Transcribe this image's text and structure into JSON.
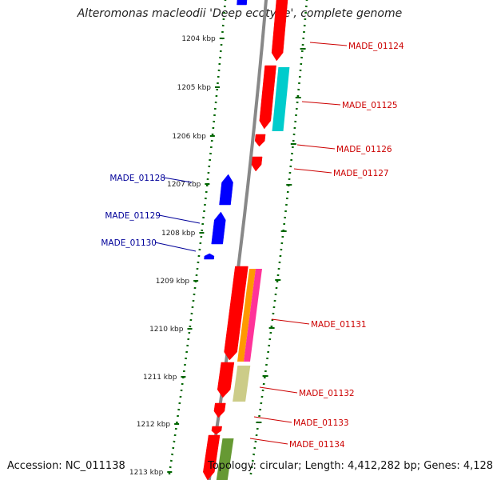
{
  "title": "Alteromonas macleodii 'Deep ecotype', complete genome",
  "accession": "Accession: NC_011138",
  "topology": "Topology: circular; Length: 4,412,282 bp; Genes: 4,128",
  "colors": {
    "forward": "#ff0000",
    "reverse": "#0000ff",
    "label_forward": "#cc0000",
    "label_reverse": "#000099",
    "ticks": "#006600",
    "backbone": "#888888"
  },
  "kbp_ticks": [
    "1204 kbp",
    "1205 kbp",
    "1206 kbp",
    "1207 kbp",
    "1208 kbp",
    "1209 kbp",
    "1210 kbp",
    "1211 kbp",
    "1212 kbp",
    "1213 kbp"
  ],
  "genes_forward": [
    "MADE_01124",
    "MADE_01125",
    "MADE_01126",
    "MADE_01127",
    "MADE_01131",
    "MADE_01132",
    "MADE_01133",
    "MADE_01134"
  ],
  "genes_reverse": [
    "MADE_01128",
    "MADE_01129",
    "MADE_01130"
  ]
}
